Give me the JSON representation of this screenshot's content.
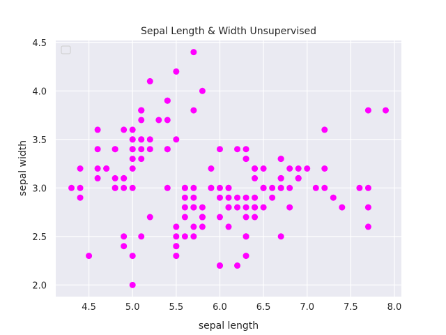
{
  "chart_data": {
    "type": "scatter",
    "title": "Sepal Length & Width Unsupervised",
    "xlabel": "sepal length",
    "ylabel": "sepal width",
    "xlim": [
      4.12,
      8.08
    ],
    "ylim": [
      1.88,
      4.52
    ],
    "xticks": [
      "4.5",
      "5.0",
      "5.5",
      "6.0",
      "6.5",
      "7.0",
      "7.5",
      "8.0"
    ],
    "yticks": [
      "2.0",
      "2.5",
      "3.0",
      "3.5",
      "4.0",
      "4.5"
    ],
    "grid": true,
    "legend": "top-left (empty)",
    "colors": {
      "point": "#ff00ff",
      "background": "#eaeaf2",
      "grid": "#ffffff"
    },
    "points": [
      [
        5.1,
        3.5
      ],
      [
        4.9,
        3.0
      ],
      [
        4.7,
        3.2
      ],
      [
        4.6,
        3.1
      ],
      [
        5.0,
        3.6
      ],
      [
        5.4,
        3.9
      ],
      [
        4.6,
        3.4
      ],
      [
        5.0,
        3.4
      ],
      [
        4.4,
        2.9
      ],
      [
        4.9,
        3.1
      ],
      [
        5.4,
        3.7
      ],
      [
        4.8,
        3.4
      ],
      [
        4.8,
        3.0
      ],
      [
        4.3,
        3.0
      ],
      [
        5.8,
        4.0
      ],
      [
        5.7,
        4.4
      ],
      [
        5.4,
        3.9
      ],
      [
        5.1,
        3.5
      ],
      [
        5.7,
        3.8
      ],
      [
        5.1,
        3.8
      ],
      [
        5.4,
        3.4
      ],
      [
        5.1,
        3.7
      ],
      [
        4.6,
        3.6
      ],
      [
        5.1,
        3.3
      ],
      [
        4.8,
        3.4
      ],
      [
        5.0,
        3.0
      ],
      [
        5.0,
        3.4
      ],
      [
        5.2,
        3.5
      ],
      [
        5.2,
        3.4
      ],
      [
        4.7,
        3.2
      ],
      [
        4.8,
        3.1
      ],
      [
        5.4,
        3.4
      ],
      [
        5.2,
        4.1
      ],
      [
        5.5,
        4.2
      ],
      [
        4.9,
        3.1
      ],
      [
        5.0,
        3.2
      ],
      [
        5.5,
        3.5
      ],
      [
        4.9,
        3.6
      ],
      [
        4.4,
        3.0
      ],
      [
        5.1,
        3.4
      ],
      [
        5.0,
        3.5
      ],
      [
        4.5,
        2.3
      ],
      [
        4.4,
        3.2
      ],
      [
        5.0,
        3.5
      ],
      [
        5.1,
        3.8
      ],
      [
        4.8,
        3.0
      ],
      [
        5.1,
        3.8
      ],
      [
        4.6,
        3.2
      ],
      [
        5.3,
        3.7
      ],
      [
        5.0,
        3.3
      ],
      [
        7.0,
        3.2
      ],
      [
        6.4,
        3.2
      ],
      [
        6.9,
        3.1
      ],
      [
        5.5,
        2.3
      ],
      [
        6.5,
        2.8
      ],
      [
        5.7,
        2.8
      ],
      [
        6.3,
        3.3
      ],
      [
        4.9,
        2.4
      ],
      [
        6.6,
        2.9
      ],
      [
        5.2,
        2.7
      ],
      [
        5.0,
        2.0
      ],
      [
        5.9,
        3.0
      ],
      [
        6.0,
        2.2
      ],
      [
        6.1,
        2.9
      ],
      [
        5.6,
        2.9
      ],
      [
        6.7,
        3.1
      ],
      [
        5.6,
        3.0
      ],
      [
        5.8,
        2.7
      ],
      [
        6.2,
        2.2
      ],
      [
        5.6,
        2.5
      ],
      [
        5.9,
        3.2
      ],
      [
        6.1,
        2.8
      ],
      [
        6.3,
        2.5
      ],
      [
        6.1,
        2.8
      ],
      [
        6.4,
        2.9
      ],
      [
        6.6,
        3.0
      ],
      [
        6.8,
        2.8
      ],
      [
        6.7,
        3.0
      ],
      [
        6.0,
        2.9
      ],
      [
        5.7,
        2.6
      ],
      [
        5.5,
        2.4
      ],
      [
        5.5,
        2.4
      ],
      [
        5.8,
        2.7
      ],
      [
        6.0,
        2.7
      ],
      [
        5.4,
        3.0
      ],
      [
        6.0,
        3.4
      ],
      [
        6.7,
        3.1
      ],
      [
        6.3,
        2.3
      ],
      [
        5.6,
        3.0
      ],
      [
        5.5,
        2.5
      ],
      [
        5.5,
        2.6
      ],
      [
        6.1,
        3.0
      ],
      [
        5.8,
        2.6
      ],
      [
        5.0,
        2.3
      ],
      [
        5.6,
        2.7
      ],
      [
        5.7,
        3.0
      ],
      [
        5.7,
        2.9
      ],
      [
        6.2,
        2.9
      ],
      [
        5.1,
        2.5
      ],
      [
        5.7,
        2.8
      ],
      [
        6.3,
        3.3
      ],
      [
        5.8,
        2.7
      ],
      [
        7.1,
        3.0
      ],
      [
        6.3,
        2.9
      ],
      [
        6.5,
        3.0
      ],
      [
        7.6,
        3.0
      ],
      [
        4.9,
        2.5
      ],
      [
        7.3,
        2.9
      ],
      [
        6.7,
        2.5
      ],
      [
        7.2,
        3.6
      ],
      [
        6.5,
        3.2
      ],
      [
        6.4,
        2.7
      ],
      [
        6.8,
        3.0
      ],
      [
        5.7,
        2.5
      ],
      [
        5.8,
        2.8
      ],
      [
        6.4,
        3.2
      ],
      [
        6.5,
        3.0
      ],
      [
        7.7,
        3.8
      ],
      [
        7.7,
        2.6
      ],
      [
        6.0,
        2.2
      ],
      [
        6.9,
        3.2
      ],
      [
        5.6,
        2.8
      ],
      [
        7.7,
        2.8
      ],
      [
        6.3,
        2.7
      ],
      [
        6.7,
        3.3
      ],
      [
        7.2,
        3.2
      ],
      [
        6.2,
        2.8
      ],
      [
        6.1,
        3.0
      ],
      [
        6.4,
        2.8
      ],
      [
        7.2,
        3.0
      ],
      [
        7.4,
        2.8
      ],
      [
        7.9,
        3.8
      ],
      [
        6.4,
        2.8
      ],
      [
        6.3,
        2.8
      ],
      [
        6.1,
        2.6
      ],
      [
        7.7,
        3.0
      ],
      [
        6.3,
        3.4
      ],
      [
        6.4,
        3.1
      ],
      [
        6.0,
        3.0
      ],
      [
        6.9,
        3.1
      ],
      [
        6.7,
        3.1
      ],
      [
        6.9,
        3.1
      ],
      [
        5.8,
        2.7
      ],
      [
        6.8,
        3.2
      ],
      [
        6.7,
        3.3
      ],
      [
        6.7,
        3.0
      ],
      [
        6.3,
        2.5
      ],
      [
        6.5,
        3.0
      ],
      [
        6.2,
        3.4
      ],
      [
        5.9,
        3.0
      ]
    ]
  }
}
